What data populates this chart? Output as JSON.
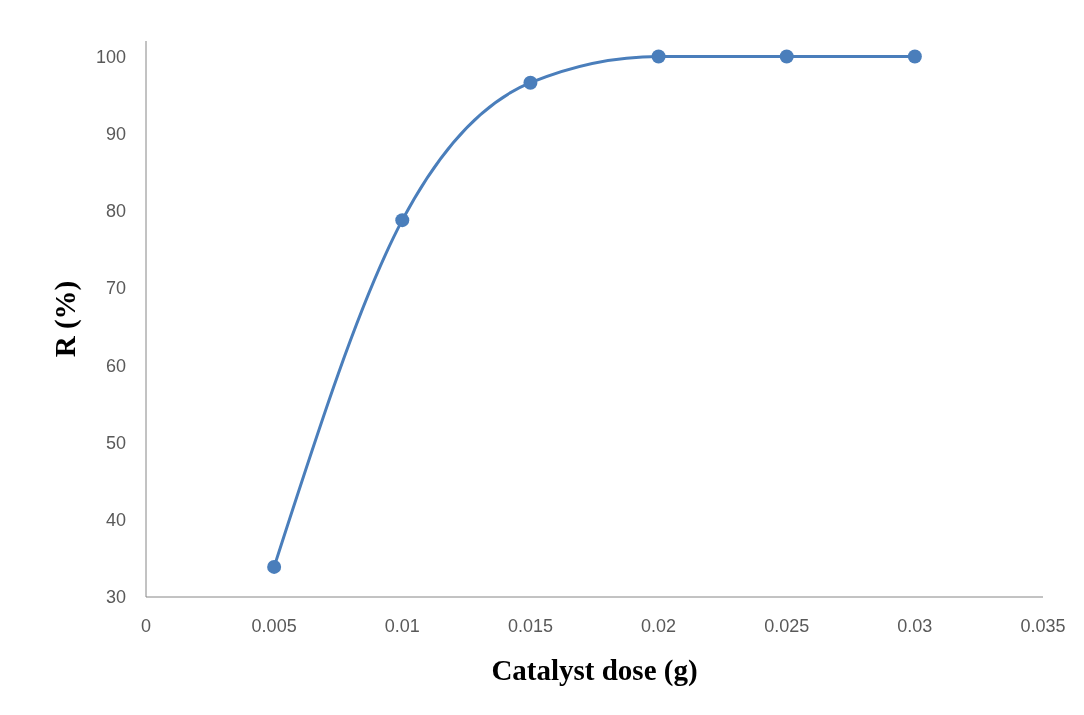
{
  "chart_data": {
    "type": "line",
    "xlabel": "Catalyst dose (g)",
    "ylabel": "R (%)",
    "x": [
      0.005,
      0.01,
      0.015,
      0.02,
      0.025,
      0.03
    ],
    "series": [
      {
        "color": "#4a7ebb",
        "values": [
          33.9,
          78.8,
          96.6,
          100,
          100,
          100
        ]
      }
    ],
    "xlim": [
      0,
      0.035
    ],
    "xticks": [
      0,
      0.005,
      0.01,
      0.015,
      0.02,
      0.025,
      0.03,
      0.035
    ],
    "ylim": [
      30,
      102
    ],
    "yticks": [
      30,
      40,
      50,
      60,
      70,
      80,
      90,
      100
    ],
    "marker": "circle",
    "line_style": "solid"
  }
}
